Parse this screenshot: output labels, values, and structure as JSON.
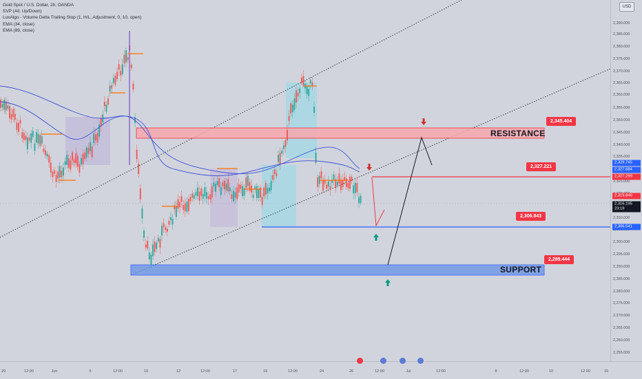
{
  "legend": {
    "symbol": "Gold Spot / U.S. Dollar, 2h, OANDA",
    "indicators": [
      "SVP (All, Up/Down)",
      "LuxAlgo - Volume Delta Trailing Stop (1, H/L, Adjustment, 0, 10, open)",
      "EMA (34, close)",
      "EMA (89, close)"
    ]
  },
  "currency_button": "USD",
  "price_ticks": [
    "2,390.000",
    "2,385.000",
    "2,380.000",
    "2,375.000",
    "2,370.000",
    "2,365.000",
    "2,360.000",
    "2,355.000",
    "2,350.000",
    "2,345.000",
    "2,340.000",
    "2,335.000",
    "2,325.000",
    "2,320.000",
    "2,310.000",
    "2,305.000",
    "2,300.000",
    "2,295.000",
    "2,290.000",
    "2,285.000",
    "2,280.000",
    "2,275.000",
    "2,270.000",
    "2,265.000",
    "2,260.000",
    "2,255.000",
    "2,250.000"
  ],
  "price_tags": [
    {
      "text": "2,329.745",
      "color": "#2962ff"
    },
    {
      "text": "2,327.684",
      "color": "#2962ff"
    },
    {
      "text": "2,327.299",
      "color": "#f23645"
    },
    {
      "text": "2,319.846",
      "color": "#f23645"
    },
    {
      "text": "2,316.195",
      "color": "#131722"
    },
    {
      "text": "23:19",
      "color": "#131722"
    },
    {
      "text": "2,306.541",
      "color": "#2962ff"
    }
  ],
  "time_ticks": [
    "29",
    "12:00",
    "Jun",
    "5",
    "12:00",
    "10",
    "12",
    "12:00",
    "17",
    "19",
    "12:00",
    "24",
    "26",
    "12:00",
    "Jul",
    "12:00",
    "8",
    "12:00",
    "10",
    "12:00",
    "15",
    "17"
  ],
  "annotations": {
    "resistance_label": "RESISTANCE",
    "support_label": "SUPPORT",
    "resistance_price": "2,345.404",
    "level_price": "2,327.221",
    "support_level_price": "2,306.843",
    "support_price": "2,289.444"
  },
  "colors": {
    "background": "#d1d4dc",
    "resistance_zone": "#f7a8ae",
    "support_zone": "#6e95e8",
    "up_candle": "#26a69a",
    "down_candle": "#ef5350",
    "ema": "#3b50d8",
    "red_level": "#f23645",
    "blue_level": "#2962ff"
  }
}
